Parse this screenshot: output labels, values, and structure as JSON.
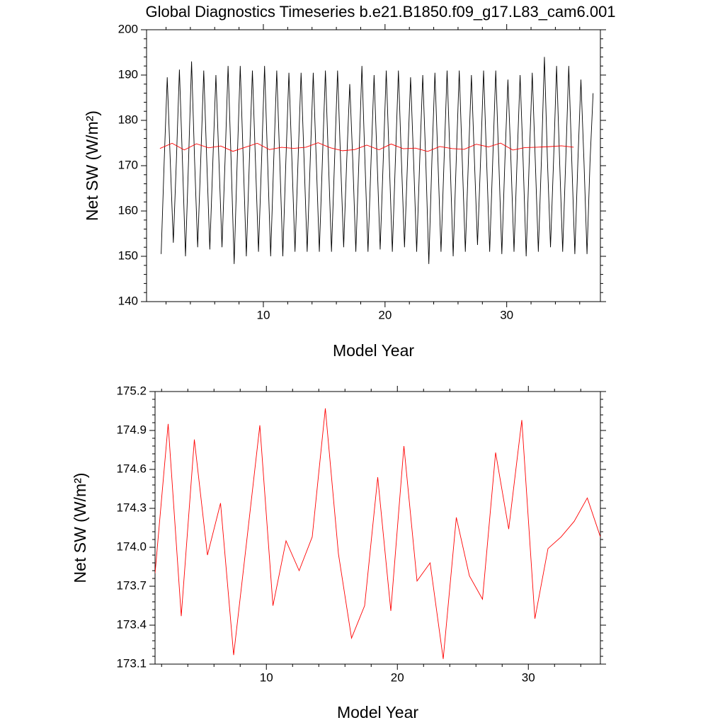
{
  "chart_data": [
    {
      "type": "line",
      "title": "Global Diagnostics Timeseries b.e21.B1850.f09_g17.L83_cam6.001",
      "xlabel": "Model Year",
      "ylabel": "Net SW (W/m²)",
      "xlim": [
        0.4,
        37.7
      ],
      "ylim": [
        140,
        200
      ],
      "xticks": [
        10,
        20,
        30
      ],
      "yticks": [
        140,
        150,
        160,
        170,
        180,
        190,
        200
      ],
      "series": [
        {
          "color": "#000000",
          "x": [
            1.6,
            1.85,
            2.1,
            2.35,
            2.6,
            2.85,
            3.1,
            3.35,
            3.6,
            3.85,
            4.1,
            4.35,
            4.6,
            4.85,
            5.1,
            5.35,
            5.6,
            5.85,
            6.1,
            6.35,
            6.6,
            6.85,
            7.1,
            7.35,
            7.6,
            7.85,
            8.1,
            8.35,
            8.6,
            8.85,
            9.1,
            9.35,
            9.6,
            9.85,
            10.1,
            10.35,
            10.6,
            10.85,
            11.1,
            11.35,
            11.6,
            11.85,
            12.1,
            12.35,
            12.6,
            12.85,
            13.1,
            13.35,
            13.6,
            13.85,
            14.1,
            14.35,
            14.6,
            14.85,
            15.1,
            15.35,
            15.6,
            15.85,
            16.1,
            16.35,
            16.6,
            16.85,
            17.1,
            17.35,
            17.6,
            17.85,
            18.1,
            18.35,
            18.6,
            18.85,
            19.1,
            19.35,
            19.6,
            19.85,
            20.1,
            20.35,
            20.6,
            20.85,
            21.1,
            21.35,
            21.6,
            21.85,
            22.1,
            22.35,
            22.6,
            22.85,
            23.1,
            23.35,
            23.6,
            23.85,
            24.1,
            24.35,
            24.6,
            24.85,
            25.1,
            25.35,
            25.6,
            25.85,
            26.1,
            26.35,
            26.6,
            26.85,
            27.1,
            27.35,
            27.6,
            27.85,
            28.1,
            28.35,
            28.6,
            28.85,
            29.1,
            29.35,
            29.6,
            29.85,
            30.1,
            30.35,
            30.6,
            30.85,
            31.1,
            31.35,
            31.6,
            31.85,
            32.1,
            32.35,
            32.6,
            32.85,
            33.1,
            33.35,
            33.6,
            33.85,
            34.1,
            34.35,
            34.6,
            34.85,
            35.1,
            35.35,
            35.6,
            35.85,
            36.1,
            36.35,
            36.6,
            36.85,
            37.1
          ],
          "values": [
            150.5,
            171,
            189.5,
            171,
            153,
            171,
            191.2,
            171,
            150,
            171,
            193,
            171,
            152,
            171,
            191,
            171,
            151.5,
            171,
            190,
            171,
            152,
            171,
            192,
            171,
            148.3,
            171,
            192,
            171,
            150,
            171,
            191,
            171,
            151,
            171,
            192,
            171,
            150,
            171,
            191,
            171,
            150,
            171,
            190.5,
            171,
            151,
            171,
            190.5,
            171,
            151,
            171,
            190.5,
            171,
            151,
            171,
            191,
            171,
            151,
            171,
            191,
            171,
            152,
            171,
            188,
            171,
            151,
            171,
            192,
            171,
            151,
            171,
            190,
            171,
            151.5,
            171,
            191,
            171,
            151,
            171,
            191,
            171,
            152,
            171,
            189.5,
            171,
            151,
            171,
            190,
            171,
            148.3,
            171,
            190.5,
            171,
            151,
            171,
            191,
            171,
            150,
            171,
            191,
            171,
            151,
            171,
            190,
            171,
            152.5,
            171,
            191,
            171,
            151,
            171,
            191,
            171,
            150.5,
            171,
            189,
            171,
            151,
            171,
            190,
            171,
            150,
            171,
            190.5,
            171,
            151,
            171,
            194,
            171,
            152,
            171,
            192,
            171,
            151,
            171,
            192,
            171,
            150.5,
            171,
            189,
            171,
            150.5,
            171,
            186
          ]
        },
        {
          "color": "#ff0000",
          "x": [
            1.5,
            2.5,
            3.5,
            4.5,
            5.5,
            6.5,
            7.5,
            8.5,
            9.5,
            10.5,
            11.5,
            12.5,
            13.5,
            14.5,
            15.5,
            16.5,
            17.5,
            18.5,
            19.5,
            20.5,
            21.5,
            22.5,
            23.5,
            24.5,
            25.5,
            26.5,
            27.5,
            28.5,
            29.5,
            30.5,
            31.5,
            32.5,
            33.5,
            34.5,
            35.5
          ],
          "values": [
            173.8,
            174.95,
            173.47,
            174.83,
            173.94,
            174.34,
            173.17,
            174.05,
            174.94,
            173.55,
            174.05,
            173.82,
            174.08,
            175.07,
            173.95,
            173.3,
            173.55,
            174.54,
            173.51,
            174.78,
            173.74,
            173.88,
            173.14,
            174.23,
            173.78,
            173.6,
            174.73,
            174.14,
            174.98,
            173.45,
            173.99,
            174.08,
            174.2,
            174.38,
            174.08
          ]
        }
      ]
    },
    {
      "type": "line",
      "xlabel": "Model Year",
      "ylabel": "Net SW (W/m²)",
      "xlim": [
        1.5,
        35.5
      ],
      "ylim": [
        173.1,
        175.2
      ],
      "xticks": [
        10,
        20,
        30
      ],
      "yticks": [
        173.1,
        173.4,
        173.7,
        {
          "value": 174,
          "label": "174.0"
        },
        174.3,
        174.6,
        174.9,
        175.2
      ],
      "series": [
        {
          "color": "#ff0000",
          "x": [
            1.5,
            2.5,
            3.5,
            4.5,
            5.5,
            6.5,
            7.5,
            8.5,
            9.5,
            10.5,
            11.5,
            12.5,
            13.5,
            14.5,
            15.5,
            16.5,
            17.5,
            18.5,
            19.5,
            20.5,
            21.5,
            22.5,
            23.5,
            24.5,
            25.5,
            26.5,
            27.5,
            28.5,
            29.5,
            30.5,
            31.5,
            32.5,
            33.5,
            34.5,
            35.5
          ],
          "values": [
            173.8,
            174.95,
            173.47,
            174.83,
            173.94,
            174.34,
            173.17,
            174.05,
            174.94,
            173.55,
            174.05,
            173.82,
            174.08,
            175.07,
            173.95,
            173.3,
            173.55,
            174.54,
            173.51,
            174.78,
            173.74,
            173.88,
            173.14,
            174.23,
            173.78,
            173.6,
            174.73,
            174.14,
            174.98,
            173.45,
            173.99,
            174.08,
            174.2,
            174.38,
            174.08
          ]
        }
      ]
    }
  ]
}
